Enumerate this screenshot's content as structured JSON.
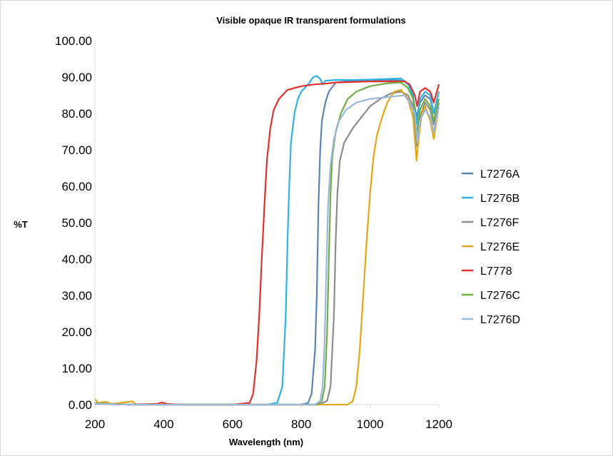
{
  "chart_data": {
    "type": "line",
    "title": "Visible opaque IR transparent formulations",
    "xlabel": "Wavelength (nm)",
    "ylabel": "%T",
    "xlim": [
      200,
      1200
    ],
    "ylim": [
      0,
      100
    ],
    "x_ticks": [
      "200",
      "400",
      "600",
      "800",
      "1000",
      "1200"
    ],
    "y_ticks": [
      "0.00",
      "10.00",
      "20.00",
      "30.00",
      "40.00",
      "50.00",
      "60.00",
      "70.00",
      "80.00",
      "90.00",
      "100.00"
    ],
    "grid": false,
    "legend_position": "right",
    "series": [
      {
        "name": "L7276A",
        "color": "#5b84b1",
        "points": [
          [
            200,
            0.4
          ],
          [
            300,
            0
          ],
          [
            400,
            0
          ],
          [
            500,
            0
          ],
          [
            600,
            0
          ],
          [
            700,
            0
          ],
          [
            800,
            0
          ],
          [
            820,
            0.5
          ],
          [
            830,
            3
          ],
          [
            840,
            15
          ],
          [
            845,
            30
          ],
          [
            850,
            55
          ],
          [
            855,
            70
          ],
          [
            860,
            78
          ],
          [
            870,
            83
          ],
          [
            880,
            86
          ],
          [
            900,
            88.5
          ],
          [
            950,
            89
          ],
          [
            1000,
            89
          ],
          [
            1050,
            89.3
          ],
          [
            1100,
            89
          ],
          [
            1120,
            87
          ],
          [
            1135,
            79
          ],
          [
            1145,
            83
          ],
          [
            1160,
            85
          ],
          [
            1175,
            84
          ],
          [
            1185,
            80
          ],
          [
            1200,
            86
          ]
        ]
      },
      {
        "name": "L7276B",
        "color": "#2fb2e0",
        "points": [
          [
            200,
            0.4
          ],
          [
            300,
            0
          ],
          [
            400,
            0
          ],
          [
            500,
            0
          ],
          [
            600,
            0
          ],
          [
            700,
            0
          ],
          [
            730,
            0.5
          ],
          [
            745,
            5
          ],
          [
            755,
            25
          ],
          [
            760,
            45
          ],
          [
            765,
            60
          ],
          [
            770,
            72
          ],
          [
            780,
            80
          ],
          [
            790,
            84
          ],
          [
            800,
            86
          ],
          [
            820,
            88
          ],
          [
            835,
            90
          ],
          [
            845,
            90.3
          ],
          [
            855,
            89.5
          ],
          [
            862,
            88
          ],
          [
            870,
            89
          ],
          [
            900,
            89.2
          ],
          [
            950,
            89.2
          ],
          [
            1000,
            89.3
          ],
          [
            1050,
            89.5
          ],
          [
            1090,
            89.6
          ],
          [
            1110,
            88
          ],
          [
            1125,
            85
          ],
          [
            1135,
            77
          ],
          [
            1145,
            84
          ],
          [
            1160,
            86
          ],
          [
            1175,
            85
          ],
          [
            1185,
            80
          ],
          [
            1200,
            86
          ]
        ]
      },
      {
        "name": "L7276F",
        "color": "#8c8c8c",
        "points": [
          [
            200,
            0.3
          ],
          [
            300,
            0
          ],
          [
            400,
            0
          ],
          [
            500,
            0
          ],
          [
            600,
            0
          ],
          [
            700,
            0
          ],
          [
            800,
            0
          ],
          [
            850,
            0
          ],
          [
            875,
            1
          ],
          [
            885,
            5
          ],
          [
            895,
            25
          ],
          [
            900,
            45
          ],
          [
            905,
            58
          ],
          [
            912,
            67
          ],
          [
            925,
            72
          ],
          [
            950,
            76
          ],
          [
            975,
            79
          ],
          [
            1000,
            82
          ],
          [
            1030,
            84
          ],
          [
            1060,
            85.5
          ],
          [
            1090,
            86
          ],
          [
            1110,
            85
          ],
          [
            1125,
            82
          ],
          [
            1135,
            71
          ],
          [
            1145,
            79
          ],
          [
            1160,
            83
          ],
          [
            1175,
            81
          ],
          [
            1185,
            77
          ],
          [
            1200,
            83
          ]
        ]
      },
      {
        "name": "L7276E",
        "color": "#e0a818",
        "points": [
          [
            200,
            1.5
          ],
          [
            210,
            0.5
          ],
          [
            230,
            0.8
          ],
          [
            250,
            0.2
          ],
          [
            310,
            0.9
          ],
          [
            320,
            0
          ],
          [
            400,
            0
          ],
          [
            500,
            0
          ],
          [
            600,
            0
          ],
          [
            700,
            0
          ],
          [
            800,
            0
          ],
          [
            900,
            0
          ],
          [
            935,
            0
          ],
          [
            950,
            1
          ],
          [
            960,
            5
          ],
          [
            970,
            15
          ],
          [
            980,
            30
          ],
          [
            990,
            45
          ],
          [
            1000,
            58
          ],
          [
            1010,
            68
          ],
          [
            1020,
            74
          ],
          [
            1035,
            79
          ],
          [
            1050,
            83
          ],
          [
            1070,
            86
          ],
          [
            1090,
            86.5
          ],
          [
            1110,
            84
          ],
          [
            1125,
            79
          ],
          [
            1135,
            67
          ],
          [
            1140,
            72
          ],
          [
            1150,
            80
          ],
          [
            1160,
            82
          ],
          [
            1175,
            78
          ],
          [
            1185,
            73
          ],
          [
            1200,
            82
          ]
        ]
      },
      {
        "name": "L7778",
        "color": "#e03030",
        "points": [
          [
            200,
            0.2
          ],
          [
            300,
            0
          ],
          [
            380,
            0.2
          ],
          [
            395,
            0.6
          ],
          [
            410,
            0.2
          ],
          [
            450,
            0
          ],
          [
            500,
            0
          ],
          [
            600,
            0
          ],
          [
            650,
            0.5
          ],
          [
            660,
            3
          ],
          [
            670,
            12
          ],
          [
            678,
            25
          ],
          [
            685,
            40
          ],
          [
            693,
            55
          ],
          [
            700,
            67
          ],
          [
            710,
            76
          ],
          [
            720,
            81
          ],
          [
            735,
            84
          ],
          [
            760,
            86.5
          ],
          [
            800,
            87.5
          ],
          [
            840,
            88
          ],
          [
            870,
            88.2
          ],
          [
            900,
            88.5
          ],
          [
            1000,
            88.8
          ],
          [
            1100,
            88.8
          ],
          [
            1115,
            88
          ],
          [
            1130,
            85
          ],
          [
            1137,
            82
          ],
          [
            1145,
            86
          ],
          [
            1160,
            87
          ],
          [
            1175,
            86
          ],
          [
            1185,
            83
          ],
          [
            1200,
            88
          ]
        ]
      },
      {
        "name": "L7276C",
        "color": "#70ad47",
        "points": [
          [
            200,
            0.3
          ],
          [
            300,
            0
          ],
          [
            400,
            0
          ],
          [
            500,
            0
          ],
          [
            600,
            0
          ],
          [
            700,
            0
          ],
          [
            800,
            0
          ],
          [
            845,
            0
          ],
          [
            860,
            1
          ],
          [
            868,
            5
          ],
          [
            875,
            20
          ],
          [
            880,
            40
          ],
          [
            885,
            58
          ],
          [
            890,
            68
          ],
          [
            900,
            75
          ],
          [
            915,
            80
          ],
          [
            935,
            84
          ],
          [
            960,
            86
          ],
          [
            1000,
            87.5
          ],
          [
            1050,
            88.3
          ],
          [
            1090,
            88.5
          ],
          [
            1110,
            87
          ],
          [
            1125,
            84
          ],
          [
            1135,
            74
          ],
          [
            1145,
            81
          ],
          [
            1160,
            84
          ],
          [
            1175,
            82
          ],
          [
            1185,
            78
          ],
          [
            1200,
            84
          ]
        ]
      },
      {
        "name": "L7276D",
        "color": "#9ab8dc",
        "points": [
          [
            200,
            0.2
          ],
          [
            300,
            0
          ],
          [
            400,
            0
          ],
          [
            500,
            0
          ],
          [
            600,
            0
          ],
          [
            700,
            0
          ],
          [
            800,
            0
          ],
          [
            840,
            0
          ],
          [
            855,
            1
          ],
          [
            862,
            5
          ],
          [
            868,
            18
          ],
          [
            873,
            38
          ],
          [
            878,
            55
          ],
          [
            885,
            66
          ],
          [
            895,
            73
          ],
          [
            910,
            78
          ],
          [
            930,
            81
          ],
          [
            960,
            83
          ],
          [
            1000,
            84
          ],
          [
            1050,
            84.5
          ],
          [
            1100,
            85
          ],
          [
            1115,
            83
          ],
          [
            1130,
            80
          ],
          [
            1137,
            72
          ],
          [
            1145,
            78
          ],
          [
            1160,
            81
          ],
          [
            1175,
            79
          ],
          [
            1185,
            75
          ],
          [
            1200,
            82
          ]
        ]
      }
    ]
  }
}
